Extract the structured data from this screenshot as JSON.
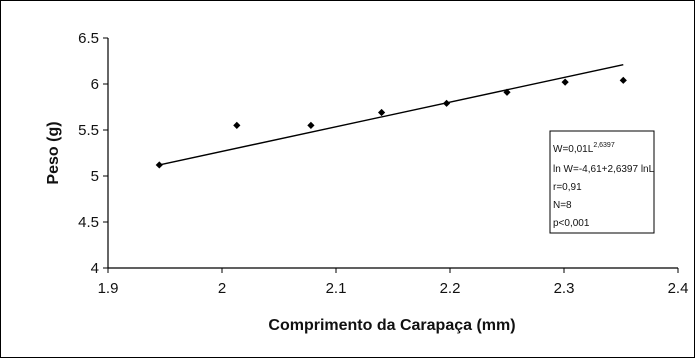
{
  "chart_data": {
    "type": "scatter",
    "xlabel": "Comprimento da Carapaça (mm)",
    "ylabel": "Peso (g)",
    "xlim": [
      1.9,
      2.4
    ],
    "ylim": [
      4,
      6.5
    ],
    "xticks": [
      "1.9",
      "2",
      "2.1",
      "2.2",
      "2.3",
      "2.4"
    ],
    "yticks": [
      "4",
      "4.5",
      "5",
      "5.5",
      "6",
      "6.5"
    ],
    "grid": false,
    "series": [
      {
        "x": [
          1.945,
          2.013,
          2.078,
          2.14,
          2.197,
          2.25,
          2.301,
          2.352
        ],
        "y": [
          5.12,
          5.55,
          5.55,
          5.69,
          5.79,
          5.91,
          6.02,
          6.04
        ]
      }
    ],
    "trendline": {
      "x": [
        1.945,
        2.352
      ],
      "y": [
        5.12,
        6.21
      ]
    },
    "stats_box": {
      "lines": [
        "W=0,01L 2,6397",
        "ln W=-4,61+2,6397 lnL",
        "r=0,91",
        "N=8",
        "p<0,001"
      ]
    }
  }
}
